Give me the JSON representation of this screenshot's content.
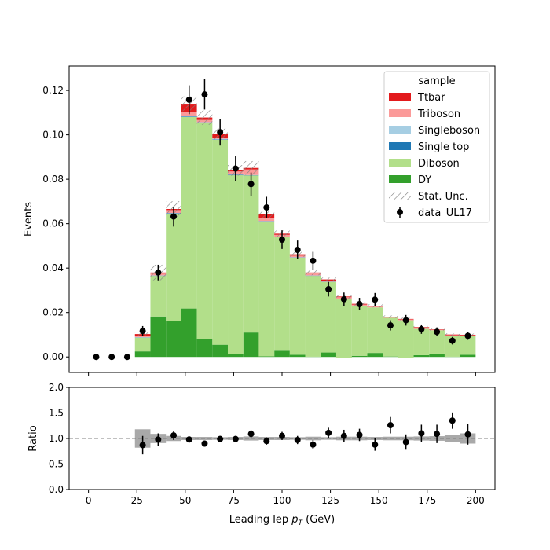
{
  "chart_data": [
    {
      "type": "histogram",
      "stacked": true,
      "xlabel": "Leading lep p_T (GeV)",
      "ylabel": "Events",
      "xlim": [
        -10,
        210
      ],
      "ylim": [
        -0.007,
        0.131
      ],
      "yticks": [
        "0.00",
        "0.02",
        "0.04",
        "0.06",
        "0.08",
        "0.10",
        "0.12"
      ],
      "xticks": [
        "0",
        "25",
        "50",
        "75",
        "100",
        "125",
        "150",
        "175",
        "200"
      ],
      "bin_edges": [
        0,
        8,
        16,
        24,
        32,
        40,
        48,
        56,
        64,
        72,
        80,
        88,
        96,
        104,
        112,
        120,
        128,
        136,
        144,
        152,
        160,
        168,
        176,
        184,
        192,
        200
      ],
      "legend": {
        "title": "sample",
        "position": "upper right",
        "entries": [
          "Ttbar",
          "Triboson",
          "Singleboson",
          "Single top",
          "Diboson",
          "DY",
          "Stat. Unc.",
          "data_UL17"
        ]
      },
      "stack_order_bottom_to_top": [
        "DY",
        "Diboson",
        "Single top",
        "Singleboson",
        "Triboson",
        "Ttbar"
      ],
      "series": [
        {
          "name": "DY",
          "color": "#33a02c",
          "values": [
            0,
            0,
            0,
            0.0025,
            0.0182,
            0.0162,
            0.0218,
            0.008,
            0.0055,
            0.0013,
            0.011,
            0.0003,
            0.0028,
            0.001,
            0.0001,
            0.002,
            -0.0005,
            0.0005,
            0.0018,
            0.0002,
            -0.0004,
            0.0008,
            0.0015,
            0.0001,
            0.001
          ]
        },
        {
          "name": "Diboson",
          "color": "#b2df8a",
          "values": [
            0,
            0,
            0,
            0.0062,
            0.0183,
            0.0483,
            0.0862,
            0.0973,
            0.0923,
            0.0805,
            0.0707,
            0.0607,
            0.0512,
            0.0437,
            0.0364,
            0.0318,
            0.0265,
            0.0225,
            0.0205,
            0.0174,
            0.0169,
            0.0118,
            0.0105,
            0.0095,
            0.0085
          ]
        },
        {
          "name": "Single top",
          "color": "#1f78b4",
          "values": [
            0,
            0,
            0,
            0.0001,
            0.0001,
            0.0002,
            0.0002,
            0.0002,
            0.0002,
            0.0002,
            0.0001,
            0.0001,
            0.0001,
            0.0001,
            0.0001,
            0.0001,
            0.0001,
            0.0001,
            0.0,
            0.0,
            0.0,
            0.0,
            0.0,
            0.0,
            0.0
          ]
        },
        {
          "name": "Singleboson",
          "color": "#a6cee3",
          "values": [
            0,
            0,
            0,
            0.0001,
            0.0001,
            0.0001,
            0.0002,
            0.0002,
            0.0002,
            0.0001,
            0.0001,
            0.0001,
            0.0001,
            0.0001,
            0.0001,
            0.0,
            0.0,
            0.0,
            0.0,
            0.0,
            0.0,
            0.0,
            0.0,
            0.0,
            0.0
          ]
        },
        {
          "name": "Triboson",
          "color": "#fb9a99",
          "values": [
            0,
            0,
            0,
            0.0006,
            0.0008,
            0.0013,
            0.002,
            0.001,
            0.0006,
            0.0014,
            0.0025,
            0.0014,
            0.0008,
            0.0007,
            0.0009,
            0.0004,
            0.0008,
            0.0005,
            0.0004,
            0.0002,
            0.0004,
            0.0002,
            0.0002,
            0.0002,
            0.0002
          ]
        },
        {
          "name": "Ttbar",
          "color": "#e31a1c",
          "values": [
            0,
            0,
            0,
            0.0008,
            0.0005,
            0.0005,
            0.0036,
            0.0011,
            0.0016,
            0.0005,
            0.0007,
            0.0016,
            0.0005,
            0.0006,
            0.0004,
            0.0006,
            0.0003,
            0.0003,
            0.0003,
            0.0003,
            0.0002,
            0.0006,
            0.0002,
            0.0003,
            0.0003
          ]
        }
      ],
      "stat_unc": [
        0,
        0,
        0,
        0.0008,
        0.0035,
        0.0035,
        0.0033,
        0.0033,
        0.0025,
        0.0024,
        0.0031,
        0.0017,
        0.0014,
        0.0011,
        0.0012,
        0.0008,
        0.0009,
        0.0008,
        0.0007,
        0.0006,
        0.0006,
        0.0005,
        0.0005,
        0.0005,
        0.0005
      ],
      "data": {
        "name": "data_UL17",
        "x": [
          4,
          12,
          20,
          28,
          36,
          44,
          52,
          60,
          68,
          76,
          84,
          92,
          100,
          108,
          116,
          124,
          132,
          140,
          148,
          156,
          164,
          172,
          180,
          188,
          196
        ],
        "y": [
          0,
          0,
          0,
          0.0117,
          0.038,
          0.0632,
          0.1158,
          0.1182,
          0.1012,
          0.0848,
          0.0778,
          0.0673,
          0.0528,
          0.0482,
          0.0433,
          0.0305,
          0.026,
          0.0238,
          0.0258,
          0.0142,
          0.0165,
          0.0125,
          0.0113,
          0.0073,
          0.0095
        ],
        "err": [
          0,
          0,
          0,
          0.0022,
          0.0035,
          0.0045,
          0.0065,
          0.0068,
          0.006,
          0.0055,
          0.0052,
          0.0048,
          0.0042,
          0.0042,
          0.004,
          0.0033,
          0.003,
          0.0028,
          0.003,
          0.0023,
          0.0024,
          0.0021,
          0.002,
          0.0017,
          0.0018
        ]
      }
    },
    {
      "type": "ratio",
      "xlabel": "Leading lep p_T (GeV)",
      "ylabel": "Ratio",
      "xlim": [
        -10,
        210
      ],
      "ylim": [
        0,
        2
      ],
      "yticks": [
        "0.0",
        "0.5",
        "1.0",
        "1.5",
        "2.0"
      ],
      "reference_line": 1.0,
      "unc_band": [
        0,
        0,
        0,
        0.18,
        0.09,
        0.05,
        0.03,
        0.03,
        0.025,
        0.03,
        0.04,
        0.03,
        0.03,
        0.025,
        0.035,
        0.025,
        0.035,
        0.035,
        0.03,
        0.035,
        0.035,
        0.04,
        0.045,
        0.07,
        0.1
      ],
      "ratio": {
        "x": [
          28,
          36,
          44,
          52,
          60,
          68,
          76,
          84,
          92,
          100,
          108,
          116,
          124,
          132,
          140,
          148,
          156,
          164,
          172,
          180,
          188,
          196
        ],
        "y": [
          0.87,
          0.98,
          1.06,
          0.98,
          0.9,
          0.99,
          0.99,
          1.09,
          0.95,
          1.05,
          0.97,
          0.88,
          1.11,
          1.05,
          1.07,
          0.88,
          1.26,
          0.93,
          1.1,
          1.09,
          1.35,
          1.08
        ],
        "err": [
          0.18,
          0.12,
          0.09,
          0.06,
          0.06,
          0.06,
          0.06,
          0.07,
          0.07,
          0.08,
          0.08,
          0.09,
          0.1,
          0.12,
          0.12,
          0.12,
          0.16,
          0.15,
          0.17,
          0.18,
          0.16,
          0.2
        ]
      }
    }
  ]
}
